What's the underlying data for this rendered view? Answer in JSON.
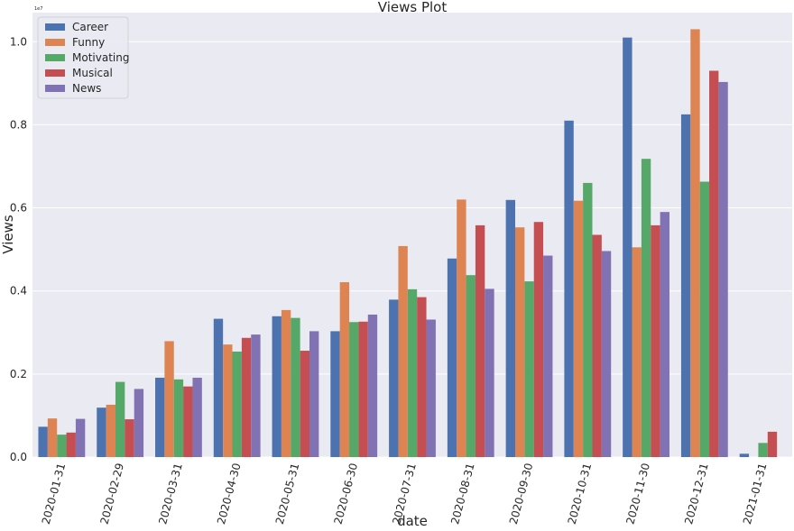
{
  "chart_data": {
    "type": "bar",
    "title": "Views Plot",
    "xlabel": "date",
    "ylabel": "Views",
    "y_offset_label": "1e7",
    "ylim": [
      0,
      1.07
    ],
    "yticks": [
      "0.0",
      "0.2",
      "0.4",
      "0.6",
      "0.8",
      "1.0"
    ],
    "grid": true,
    "legend_position": "top-left",
    "categories": [
      "2020-01-31",
      "2020-02-29",
      "2020-03-31",
      "2020-04-30",
      "2020-05-31",
      "2020-06-30",
      "2020-07-31",
      "2020-08-31",
      "2020-09-30",
      "2020-10-31",
      "2020-11-30",
      "2020-12-31",
      "2021-01-31"
    ],
    "series": [
      {
        "name": "Career",
        "color": "#4c72b0",
        "values": [
          0.073,
          0.119,
          0.191,
          0.333,
          0.339,
          0.303,
          0.379,
          0.478,
          0.619,
          0.81,
          1.01,
          0.825,
          0.008
        ]
      },
      {
        "name": "Funny",
        "color": "#dd8452",
        "values": [
          0.093,
          0.126,
          0.279,
          0.271,
          0.354,
          0.421,
          0.508,
          0.62,
          0.553,
          0.617,
          0.505,
          1.03,
          0.0
        ]
      },
      {
        "name": "Motivating",
        "color": "#55a868",
        "values": [
          0.054,
          0.181,
          0.187,
          0.254,
          0.335,
          0.325,
          0.404,
          0.438,
          0.423,
          0.66,
          0.718,
          0.663,
          0.034
        ]
      },
      {
        "name": "Musical",
        "color": "#c44e52",
        "values": [
          0.059,
          0.091,
          0.17,
          0.287,
          0.256,
          0.326,
          0.385,
          0.558,
          0.566,
          0.535,
          0.558,
          0.93,
          0.061
        ]
      },
      {
        "name": "News",
        "color": "#8172b3",
        "values": [
          0.092,
          0.164,
          0.191,
          0.295,
          0.303,
          0.343,
          0.331,
          0.405,
          0.485,
          0.496,
          0.59,
          0.903,
          0.0
        ]
      }
    ]
  }
}
